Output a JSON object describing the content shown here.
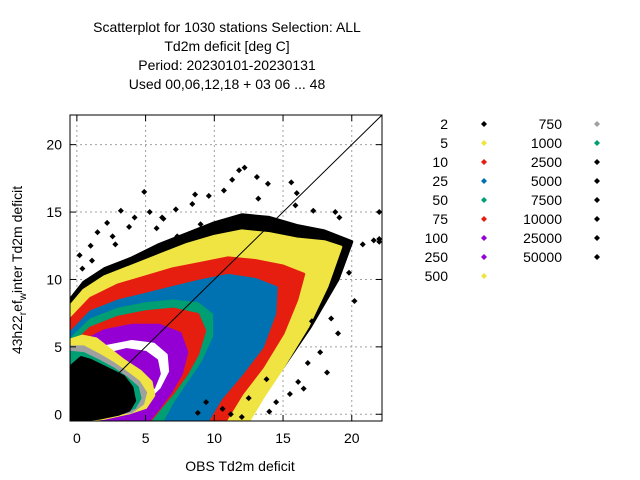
{
  "chart_data": {
    "type": "scatter",
    "title": [
      "Scatterplot for 1030 stations Selection: ALL",
      "Td2m deficit [deg C]",
      "Period: 20230101-20230131",
      "Used  00,06,12,18  + 03 06 ... 48"
    ],
    "xlabel": "OBS Td2m deficit",
    "ylabel_parts": [
      "43h22",
      "r",
      "ef",
      "w",
      "inter Td2m deficit"
    ],
    "xlim": [
      -0.5,
      22.2
    ],
    "ylim": [
      -0.5,
      22.2
    ],
    "xticks": [
      0,
      5,
      10,
      15,
      20
    ],
    "yticks": [
      0,
      5,
      10,
      15,
      20
    ],
    "grid": true,
    "diagonal_line": true,
    "legend_placement": "right",
    "density_legend": [
      {
        "label": "2",
        "color": "#000000"
      },
      {
        "label": "5",
        "color": "#f0e442"
      },
      {
        "label": "10",
        "color": "#e51e10"
      },
      {
        "label": "25",
        "color": "#0072b2"
      },
      {
        "label": "50",
        "color": "#009e73"
      },
      {
        "label": "75",
        "color": "#e51e10"
      },
      {
        "label": "100",
        "color": "#9400d3"
      },
      {
        "label": "250",
        "color": "#9400d3"
      },
      {
        "label": "500",
        "color": "#f0e442"
      },
      {
        "label": "750",
        "color": "#a0a0a0"
      },
      {
        "label": "1000",
        "color": "#009e73"
      },
      {
        "label": "2500",
        "color": "#000000"
      },
      {
        "label": "5000",
        "color": "#000000"
      },
      {
        "label": "7500",
        "color": "#000000"
      },
      {
        "label": "10000",
        "color": "#000000"
      },
      {
        "label": "25000",
        "color": "#000000"
      },
      {
        "label": "50000",
        "color": "#000000"
      }
    ],
    "density_regions": [
      {
        "color": "#000000",
        "points": [
          [
            -0.5,
            8.5
          ],
          [
            0.5,
            9.8
          ],
          [
            2,
            10.8
          ],
          [
            4,
            11.6
          ],
          [
            6,
            12.6
          ],
          [
            8,
            13.4
          ],
          [
            10,
            14.2
          ],
          [
            12,
            14.8
          ],
          [
            14,
            14.6
          ],
          [
            16,
            14.0
          ],
          [
            18,
            13.6
          ],
          [
            20,
            12.8
          ],
          [
            19,
            10
          ],
          [
            17,
            6.5
          ],
          [
            15,
            3.5
          ],
          [
            13,
            1
          ],
          [
            11,
            -0.5
          ],
          [
            -0.5,
            -0.5
          ]
        ]
      },
      {
        "color": "#f0e442",
        "points": [
          [
            -0.5,
            8
          ],
          [
            0.5,
            9.2
          ],
          [
            2,
            10.2
          ],
          [
            4,
            11.0
          ],
          [
            6,
            11.8
          ],
          [
            8,
            12.6
          ],
          [
            10,
            13.2
          ],
          [
            12,
            13.6
          ],
          [
            14,
            13.4
          ],
          [
            16,
            13.0
          ],
          [
            18,
            12.8
          ],
          [
            19.2,
            12.4
          ],
          [
            18.2,
            9.5
          ],
          [
            16.8,
            6.5
          ],
          [
            15,
            3.5
          ],
          [
            13.5,
            1.2
          ],
          [
            12.5,
            -0.5
          ],
          [
            -0.5,
            -0.5
          ]
        ]
      },
      {
        "color": "#e51e10",
        "points": [
          [
            -0.5,
            7
          ],
          [
            1,
            8.6
          ],
          [
            3,
            9.6
          ],
          [
            5,
            10.2
          ],
          [
            7,
            10.8
          ],
          [
            9,
            11.2
          ],
          [
            11,
            11.6
          ],
          [
            13,
            11.4
          ],
          [
            15,
            11.0
          ],
          [
            16.5,
            10.4
          ],
          [
            16,
            8.5
          ],
          [
            15,
            6
          ],
          [
            13.5,
            3.5
          ],
          [
            12,
            1.5
          ],
          [
            10.8,
            -0.5
          ],
          [
            -0.5,
            -0.5
          ]
        ]
      },
      {
        "color": "#0072b2",
        "points": [
          [
            -0.5,
            6
          ],
          [
            1,
            7.6
          ],
          [
            3,
            8.4
          ],
          [
            5,
            8.9
          ],
          [
            7,
            9.4
          ],
          [
            9,
            9.9
          ],
          [
            11,
            10.3
          ],
          [
            13,
            10.0
          ],
          [
            14.5,
            9.4
          ],
          [
            14.4,
            7.5
          ],
          [
            13.5,
            5
          ],
          [
            12,
            3
          ],
          [
            10.5,
            1.2
          ],
          [
            9.5,
            -0.5
          ],
          [
            -0.5,
            -0.5
          ]
        ]
      },
      {
        "color": "#009e73",
        "points": [
          [
            -0.5,
            5.5
          ],
          [
            1,
            7
          ],
          [
            3,
            7.8
          ],
          [
            5,
            8.2
          ],
          [
            7,
            8.4
          ],
          [
            8.8,
            8.2
          ],
          [
            9.8,
            7.4
          ],
          [
            9.8,
            5.8
          ],
          [
            9,
            4
          ],
          [
            8,
            2.5
          ],
          [
            7,
            1
          ],
          [
            6.2,
            -0.5
          ],
          [
            -0.5,
            -0.5
          ]
        ]
      },
      {
        "color": "#e51e10",
        "points": [
          [
            -0.5,
            5
          ],
          [
            1,
            6.4
          ],
          [
            3,
            7.2
          ],
          [
            5,
            7.6
          ],
          [
            7,
            7.8
          ],
          [
            8.8,
            7.4
          ],
          [
            9.3,
            6.2
          ],
          [
            8.8,
            4.5
          ],
          [
            8,
            3
          ],
          [
            7,
            1.6
          ],
          [
            6,
            0.4
          ],
          [
            5.3,
            -0.5
          ],
          [
            -0.5,
            -0.5
          ]
        ]
      },
      {
        "color": "#9400d3",
        "points": [
          [
            -0.5,
            4.5
          ],
          [
            0.5,
            5.4
          ],
          [
            2,
            6.2
          ],
          [
            4,
            6.6
          ],
          [
            6,
            6.6
          ],
          [
            7.5,
            6.0
          ],
          [
            8.0,
            4.6
          ],
          [
            7.6,
            3.0
          ],
          [
            6.8,
            1.6
          ],
          [
            6,
            0.5
          ],
          [
            5.2,
            -0.5
          ],
          [
            -0.5,
            -0.5
          ]
        ]
      },
      {
        "color": "#ffffff",
        "points": [
          [
            0.6,
            4.2
          ],
          [
            2,
            5.0
          ],
          [
            4,
            5.4
          ],
          [
            5.6,
            5.2
          ],
          [
            6.5,
            4.4
          ],
          [
            6.6,
            3.2
          ],
          [
            6.0,
            2.0
          ],
          [
            5.0,
            1.0
          ],
          [
            4.0,
            0.5
          ],
          [
            2.6,
            0.5
          ],
          [
            1.2,
            0.8
          ],
          [
            0.4,
            1.6
          ],
          [
            0.2,
            3.0
          ]
        ]
      },
      {
        "color": "#9400d3",
        "points": [
          [
            1.0,
            3.8
          ],
          [
            2,
            4.4
          ],
          [
            3.6,
            4.8
          ],
          [
            5.0,
            4.6
          ],
          [
            5.8,
            4.0
          ],
          [
            6.0,
            3.0
          ],
          [
            5.6,
            2.0
          ],
          [
            4.6,
            1.2
          ],
          [
            3.4,
            0.8
          ],
          [
            2.2,
            0.8
          ],
          [
            1.2,
            1.2
          ],
          [
            0.7,
            2.2
          ]
        ]
      },
      {
        "color": "#f0e442",
        "points": [
          [
            -0.5,
            5.5
          ],
          [
            0.4,
            5.8
          ],
          [
            1.4,
            5.6
          ],
          [
            2.4,
            4.8
          ],
          [
            3.4,
            4.0
          ],
          [
            4.6,
            3.2
          ],
          [
            5.4,
            2.4
          ],
          [
            5.6,
            1.4
          ],
          [
            5.0,
            0.5
          ],
          [
            3.8,
            0.1
          ],
          [
            2,
            -0.3
          ],
          [
            0.4,
            -0.5
          ],
          [
            -0.5,
            -0.5
          ]
        ]
      },
      {
        "color": "#a0a0a0",
        "points": [
          [
            -0.5,
            5.0
          ],
          [
            0.5,
            5.0
          ],
          [
            1.6,
            4.4
          ],
          [
            2.6,
            3.8
          ],
          [
            3.6,
            3.1
          ],
          [
            4.5,
            2.4
          ],
          [
            5.0,
            1.6
          ],
          [
            4.8,
            0.8
          ],
          [
            4.0,
            0.2
          ],
          [
            2.6,
            0.0
          ],
          [
            1.2,
            -0.3
          ],
          [
            -0.5,
            -0.5
          ]
        ]
      },
      {
        "color": "#009e73",
        "points": [
          [
            -0.5,
            4.6
          ],
          [
            0.5,
            4.5
          ],
          [
            1.5,
            4.0
          ],
          [
            2.6,
            3.4
          ],
          [
            3.6,
            2.7
          ],
          [
            4.4,
            2.0
          ],
          [
            4.6,
            1.2
          ],
          [
            4.2,
            0.5
          ],
          [
            3.2,
            0.1
          ],
          [
            1.8,
            -0.2
          ],
          [
            -0.5,
            -0.5
          ]
        ]
      },
      {
        "color": "#000000",
        "points": [
          [
            -0.5,
            3.5
          ],
          [
            0.3,
            4.2
          ],
          [
            1.0,
            4.0
          ],
          [
            1.8,
            3.6
          ],
          [
            2.6,
            3.2
          ],
          [
            3.4,
            2.8
          ],
          [
            4.0,
            2.0
          ],
          [
            4.2,
            1.0
          ],
          [
            3.8,
            0.3
          ],
          [
            3.0,
            0.0
          ],
          [
            1.6,
            -0.3
          ],
          [
            -0.5,
            -0.5
          ]
        ]
      }
    ],
    "outlier_points": [
      [
        1.5,
        13.5
      ],
      [
        2.2,
        14.2
      ],
      [
        3.2,
        15.1
      ],
      [
        4.2,
        14.6
      ],
      [
        5.3,
        15.0
      ],
      [
        6.3,
        14.5
      ],
      [
        8.4,
        15.6
      ],
      [
        8.6,
        16.3
      ],
      [
        9.6,
        16.2
      ],
      [
        10.7,
        16.6
      ],
      [
        11.3,
        17.4
      ],
      [
        11.8,
        18.1
      ],
      [
        12.2,
        18.3
      ],
      [
        13.2,
        16.0
      ],
      [
        13.9,
        17.1
      ],
      [
        16.0,
        16.4
      ],
      [
        15.6,
        17.2
      ],
      [
        15.9,
        15.5
      ],
      [
        17.2,
        15.1
      ],
      [
        18.8,
        15.0
      ],
      [
        19.1,
        14.6
      ],
      [
        22.0,
        15.0
      ],
      [
        22.0,
        12.8
      ],
      [
        4.9,
        16.5
      ],
      [
        6.2,
        14.6
      ],
      [
        7.2,
        15.2
      ],
      [
        13.1,
        17.6
      ],
      [
        9.0,
        14.1
      ],
      [
        0.2,
        11.8
      ],
      [
        1.0,
        12.5
      ],
      [
        2.8,
        12.6
      ],
      [
        16.1,
        2.4
      ],
      [
        15.5,
        1.5
      ],
      [
        14.5,
        0.9
      ],
      [
        10.6,
        0.4
      ],
      [
        11.2,
        0.0
      ],
      [
        12.5,
        1.2
      ],
      [
        13.8,
        2.6
      ],
      [
        16.8,
        3.8
      ],
      [
        17.7,
        4.6
      ],
      [
        18.5,
        7.1
      ],
      [
        19.0,
        6.0
      ],
      [
        20.2,
        8.4
      ],
      [
        22.0,
        13.0
      ],
      [
        12.0,
        -0.2
      ],
      [
        9.4,
        0.9
      ],
      [
        8.8,
        0.1
      ],
      [
        14.0,
        0.2
      ],
      [
        16.5,
        1.9
      ],
      [
        18.2,
        3.1
      ],
      [
        17.1,
        6.9
      ],
      [
        19.8,
        10.5
      ],
      [
        20.8,
        12.6
      ],
      [
        21.6,
        12.9
      ],
      [
        7.3,
        13.2
      ],
      [
        5.8,
        13.8
      ],
      [
        3.8,
        13.9
      ],
      [
        2.6,
        13.2
      ],
      [
        1.1,
        11.4
      ],
      [
        0.4,
        10.8
      ]
    ]
  }
}
